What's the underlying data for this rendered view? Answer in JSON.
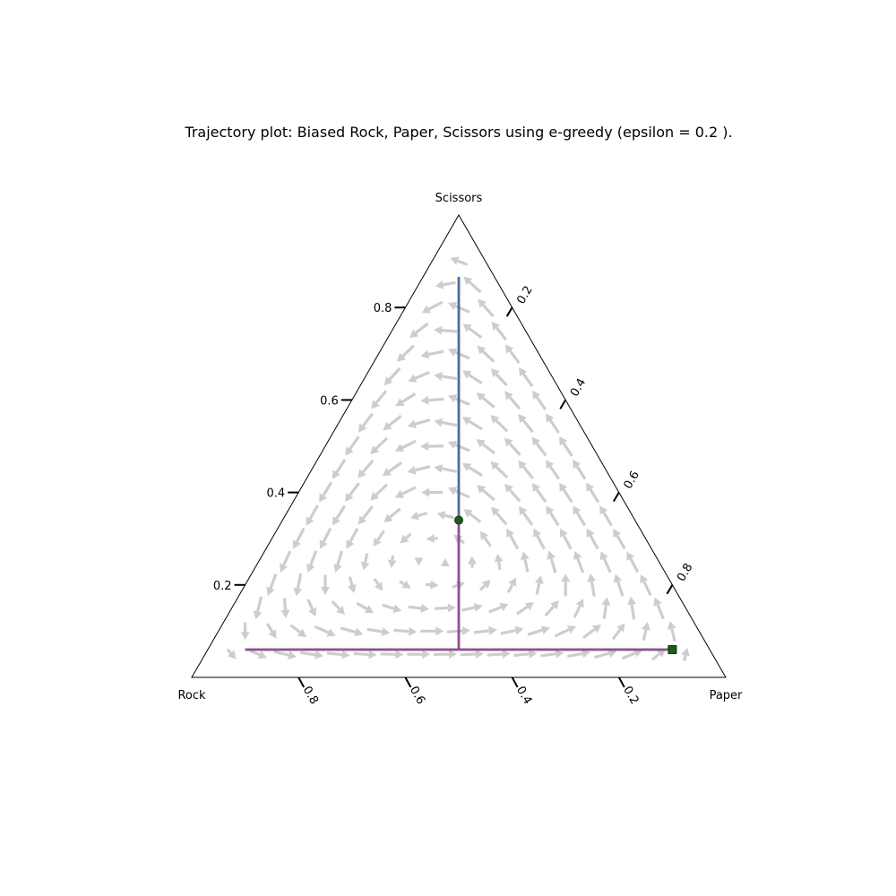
{
  "chart_data": {
    "type": "ternary",
    "title": "Trajectory plot: Biased Rock, Paper, Scissors using e-greedy (epsilon = 0.2 ).",
    "corners": {
      "left": "Rock",
      "right": "Paper",
      "top": "Scissors"
    },
    "axes": {
      "scissors": {
        "ticks": [
          0.2,
          0.4,
          0.6,
          0.8
        ],
        "tick_labels": [
          "0.2",
          "0.4",
          "0.6",
          "0.8"
        ],
        "side": "left"
      },
      "paper": {
        "ticks": [
          0.2,
          0.4,
          0.6,
          0.8
        ],
        "tick_labels": [
          "0.2",
          "0.4",
          "0.6",
          "0.8"
        ],
        "side": "right"
      },
      "rock": {
        "ticks": [
          0.2,
          0.4,
          0.6,
          0.8
        ],
        "tick_labels": [
          "0.2",
          "0.4",
          "0.6",
          "0.8"
        ],
        "side": "bottom"
      }
    },
    "colors": {
      "frame": "#000000",
      "arrows": "#c0c0c0",
      "trajectory_vertical": "#4a6fa0",
      "trajectory_horizontal": "#9b4a9a",
      "trajectory_dark": "#3a2a4a",
      "start_marker": "#1f5a1f",
      "end_marker": "#1f5a1f"
    },
    "trajectories": [
      {
        "name": "",
        "points": [
          {
            "rock": 0.067,
            "paper": 0.067,
            "scissors": 0.866
          },
          {
            "rock": 0.33,
            "paper": 0.33,
            "scissors": 0.34
          }
        ]
      },
      {
        "name": "",
        "points": [
          {
            "rock": 0.33,
            "paper": 0.33,
            "scissors": 0.34
          },
          {
            "rock": 0.47,
            "paper": 0.47,
            "scissors": 0.06
          }
        ]
      },
      {
        "name": "",
        "points": [
          {
            "rock": 0.87,
            "paper": 0.07,
            "scissors": 0.06
          },
          {
            "rock": 0.07,
            "paper": 0.87,
            "scissors": 0.06
          }
        ]
      }
    ],
    "markers": [
      {
        "shape": "circle",
        "point": {
          "rock": 0.33,
          "paper": 0.33,
          "scissors": 0.34
        }
      },
      {
        "shape": "square",
        "point": {
          "rock": 0.07,
          "paper": 0.87,
          "scissors": 0.06
        }
      }
    ],
    "vector_field": "replicator dynamics quiver over simplex, arrows flowing counter-clockwise toward Paper corner"
  }
}
